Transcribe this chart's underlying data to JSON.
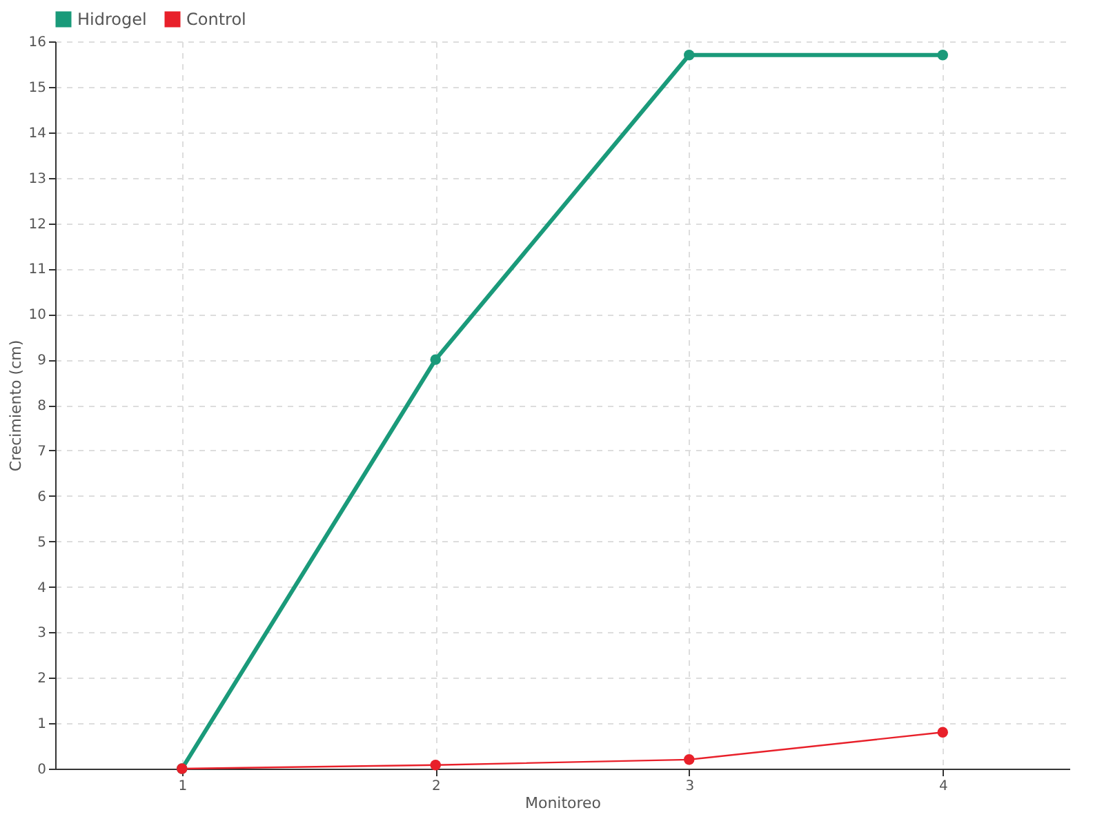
{
  "chart_data": {
    "type": "line",
    "xlabel": "Monitoreo",
    "ylabel": "Crecimiento (cm)",
    "categories": [
      "1",
      "2",
      "3",
      "4"
    ],
    "series": [
      {
        "name": "Hidrogel",
        "color": "#1a9a7a",
        "values": [
          0,
          9,
          15.7,
          15.7
        ]
      },
      {
        "name": "Control",
        "color": "#e8202a",
        "values": [
          0,
          0.08,
          0.2,
          0.8
        ]
      }
    ],
    "ylim": [
      0,
      16
    ],
    "yticks": [
      0,
      1,
      2,
      3,
      4,
      5,
      6,
      7,
      8,
      9,
      10,
      11,
      12,
      13,
      14,
      15,
      16
    ],
    "grid": true,
    "legend": "top left",
    "marker": "circle",
    "line_style": "solid"
  }
}
